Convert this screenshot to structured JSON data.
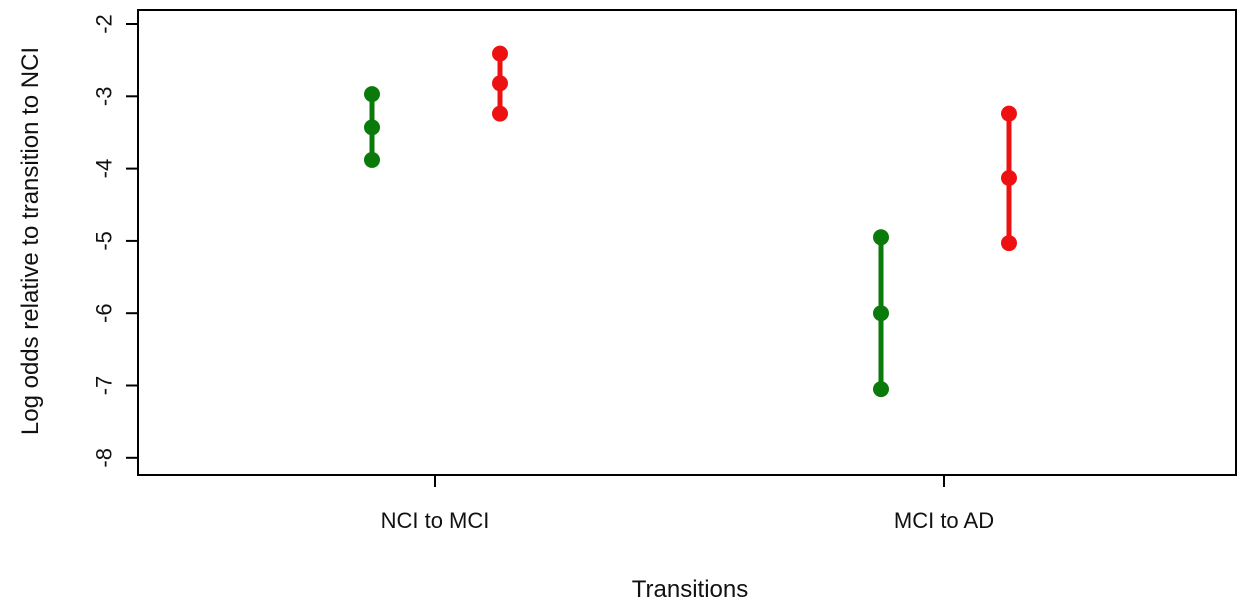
{
  "chart_data": {
    "type": "scatter",
    "title": "",
    "xlabel": "Transitions",
    "ylabel": "Log odds relative to transition to NCI",
    "categories": [
      "NCI to MCI",
      "MCI to AD"
    ],
    "ylim": [
      -8.25,
      -1.8
    ],
    "yticks": [
      "-2",
      "-3",
      "-4",
      "-5",
      "-6",
      "-7",
      "-8"
    ],
    "grid": false,
    "legend": "none",
    "series": [
      {
        "color": "#0a7a0a",
        "points": [
          {
            "category": "NCI to MCI",
            "estimate": -3.43,
            "lower": -3.88,
            "upper": -2.97
          },
          {
            "category": "MCI to AD",
            "estimate": -6.0,
            "lower": -7.05,
            "upper": -4.95
          }
        ]
      },
      {
        "color": "#ee1111",
        "points": [
          {
            "category": "NCI to MCI",
            "estimate": -2.82,
            "lower": -3.24,
            "upper": -2.41
          },
          {
            "category": "MCI to AD",
            "estimate": -4.13,
            "lower": -5.03,
            "upper": -3.24
          }
        ]
      }
    ]
  }
}
